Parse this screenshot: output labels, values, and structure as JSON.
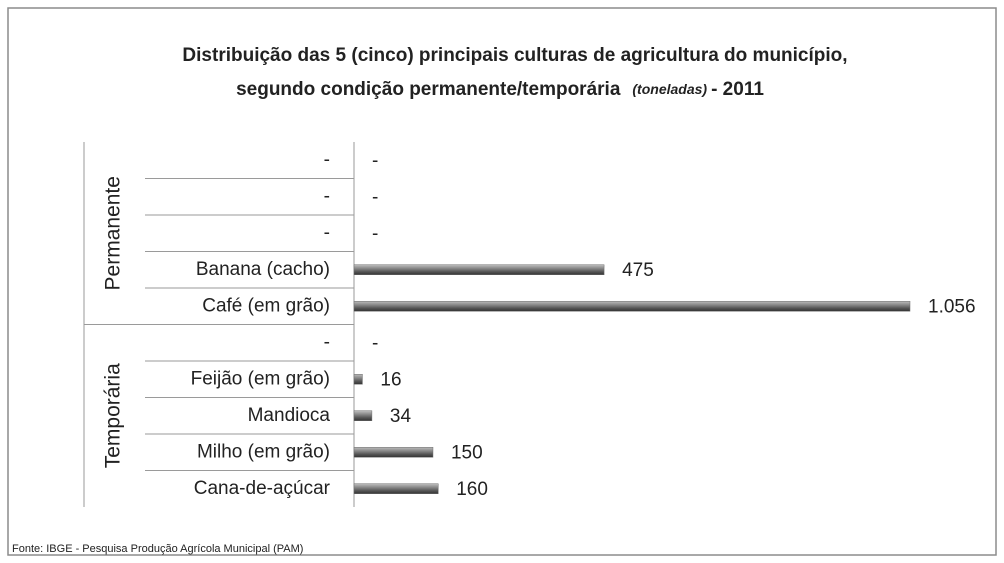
{
  "chart_data": {
    "type": "bar",
    "orientation": "horizontal",
    "title_lines": [
      "Distribuição das 5 (cinco) principais culturas de agricultura do município,",
      "segundo condição permanente/temporária",
      "(toneladas)",
      "- 2011"
    ],
    "groups": [
      {
        "name": "Permanente",
        "size": 5
      },
      {
        "name": "Temporária",
        "size": 5
      }
    ],
    "categories": [
      "-",
      "-",
      "-",
      "Banana (cacho)",
      "Café (em grão)",
      "-",
      "Feijão (em grão)",
      "Mandioca",
      "Milho (em grão)",
      "Cana-de-açúcar"
    ],
    "values": [
      null,
      null,
      null,
      475,
      1056,
      null,
      16,
      34,
      150,
      160
    ],
    "value_labels": [
      "-",
      "-",
      "-",
      "475",
      "1.056",
      "-",
      "16",
      "34",
      "150",
      "160"
    ],
    "color": "#6e6e6e",
    "source": "Fonte: IBGE - Pesquisa Produção Agrícola Municipal (PAM)"
  }
}
